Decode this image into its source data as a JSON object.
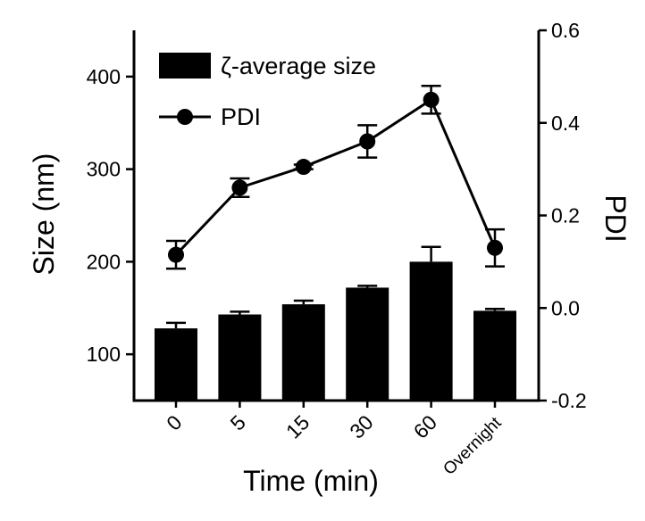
{
  "chart_data": {
    "type": "bar",
    "categories": [
      "0",
      "5",
      "15",
      "30",
      "60",
      "Overnight"
    ],
    "xlabel": "Time (min)",
    "ylabel": "Size (nm)",
    "y2label": "PDI",
    "ylim": [
      50,
      450
    ],
    "y2lim": [
      -0.2,
      0.6
    ],
    "yticks": [
      100,
      200,
      300,
      400
    ],
    "y2ticks": [
      -0.2,
      0.0,
      0.2,
      0.4,
      0.6
    ],
    "y2tick_labels": [
      "-0.2",
      "0.0",
      "0.2",
      "0.4",
      "0.6"
    ],
    "grid": false,
    "legend_position": "top-left",
    "series": [
      {
        "name": "ζ-average size",
        "type": "bar",
        "axis": "left",
        "values": [
          128,
          143,
          154,
          172,
          200,
          147
        ],
        "errors": [
          6,
          3,
          4,
          2,
          16,
          2
        ],
        "color": "#000000"
      },
      {
        "name": "PDI",
        "type": "line",
        "axis": "right",
        "values": [
          0.115,
          0.26,
          0.305,
          0.36,
          0.45,
          0.13
        ],
        "errors": [
          0.03,
          0.02,
          0.005,
          0.035,
          0.03,
          0.04
        ],
        "color": "#000000"
      }
    ]
  }
}
